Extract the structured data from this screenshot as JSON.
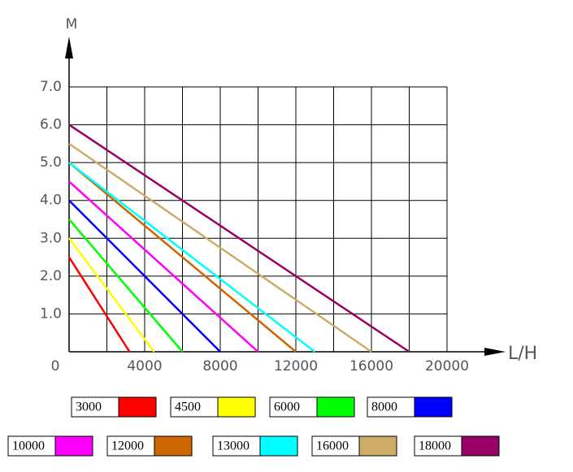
{
  "chart_data": {
    "type": "line",
    "xlabel": "L/H",
    "ylabel": "M",
    "xlim": [
      0,
      20000
    ],
    "ylim": [
      0,
      7
    ],
    "xticks": [
      0,
      4000,
      8000,
      12000,
      16000,
      20000
    ],
    "xminor_ticks": [
      2000,
      6000,
      10000,
      14000,
      18000
    ],
    "yticks": [
      {
        "value": 1,
        "label": "1.0"
      },
      {
        "value": 2,
        "label": "2.0"
      },
      {
        "value": 3,
        "label": "3.0"
      },
      {
        "value": 4,
        "label": "4.0"
      },
      {
        "value": 5,
        "label": "5.0"
      },
      {
        "value": 6,
        "label": "6.0"
      },
      {
        "value": 7,
        "label": "7.0"
      }
    ],
    "grid": true,
    "series": [
      {
        "name": "3000",
        "color": "#ff0000",
        "x": [
          0,
          3200
        ],
        "values": [
          2.5,
          0
        ]
      },
      {
        "name": "4500",
        "color": "#ffff00",
        "x": [
          0,
          4500
        ],
        "values": [
          3.0,
          0
        ]
      },
      {
        "name": "6000",
        "color": "#00ff00",
        "x": [
          0,
          6000
        ],
        "values": [
          3.5,
          0
        ]
      },
      {
        "name": "8000",
        "color": "#0000ff",
        "x": [
          0,
          8000
        ],
        "values": [
          4.0,
          0
        ]
      },
      {
        "name": "10000",
        "color": "#ff00ff",
        "x": [
          0,
          10000
        ],
        "values": [
          4.5,
          0
        ]
      },
      {
        "name": "12000",
        "color": "#cc6600",
        "x": [
          0,
          12000
        ],
        "values": [
          5.0,
          0
        ]
      },
      {
        "name": "13000",
        "color": "#00ffff",
        "x": [
          0,
          13000
        ],
        "values": [
          5.0,
          0
        ]
      },
      {
        "name": "16000",
        "color": "#ccac66",
        "x": [
          0,
          16000
        ],
        "values": [
          5.5,
          0
        ]
      },
      {
        "name": "18000",
        "color": "#990066",
        "x": [
          0,
          18000
        ],
        "values": [
          6.0,
          0
        ]
      }
    ]
  }
}
